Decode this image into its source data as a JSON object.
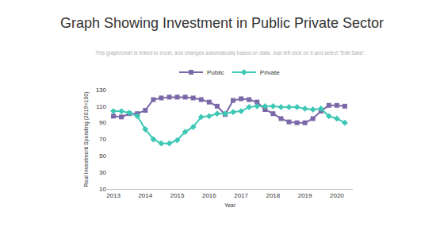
{
  "chart_data": {
    "type": "line",
    "title": "Graph Showing Investment in Public Private Sector",
    "subtitle": "This graph/chart is linked to excel, and changes automatically based on data. Just left click on it and select \"Edit Data\".",
    "x_label": "Year",
    "y_label": "Real Investment Spending (2019=100)",
    "x": [
      2013,
      2013.25,
      2013.5,
      2013.75,
      2014,
      2014.25,
      2014.5,
      2014.75,
      2015,
      2015.25,
      2015.5,
      2015.75,
      2016,
      2016.25,
      2016.5,
      2016.75,
      2017,
      2017.25,
      2017.5,
      2017.75,
      2018,
      2018.25,
      2018.5,
      2018.75,
      2019,
      2019.25,
      2019.5,
      2019.75,
      2020,
      2020.25
    ],
    "series": [
      {
        "name": "Public",
        "color": "#7b68a8",
        "marker": "square",
        "values": [
          98,
          97,
          101,
          101,
          105,
          118,
          120,
          121,
          121,
          121,
          120,
          118,
          115,
          110,
          100,
          117,
          119,
          118,
          115,
          106,
          101,
          95,
          91,
          90,
          90,
          95,
          104,
          111,
          111,
          110
        ]
      },
      {
        "name": "Private",
        "color": "#3cc8b4",
        "marker": "diamond",
        "values": [
          104,
          104,
          102,
          98,
          82,
          70,
          65,
          65,
          69,
          79,
          85,
          97,
          98,
          101,
          101,
          103,
          104,
          109,
          110,
          110,
          110,
          109,
          109,
          109,
          107,
          106,
          107,
          98,
          95,
          90
        ]
      }
    ],
    "xlim": [
      2012.8,
      2020.5
    ],
    "xticks": [
      2013,
      2014,
      2015,
      2016,
      2017,
      2018,
      2019,
      2020
    ],
    "ylim": [
      10,
      130
    ],
    "yticks": [
      10,
      30,
      50,
      70,
      90,
      110,
      130
    ],
    "grid": false,
    "legend": "top"
  }
}
